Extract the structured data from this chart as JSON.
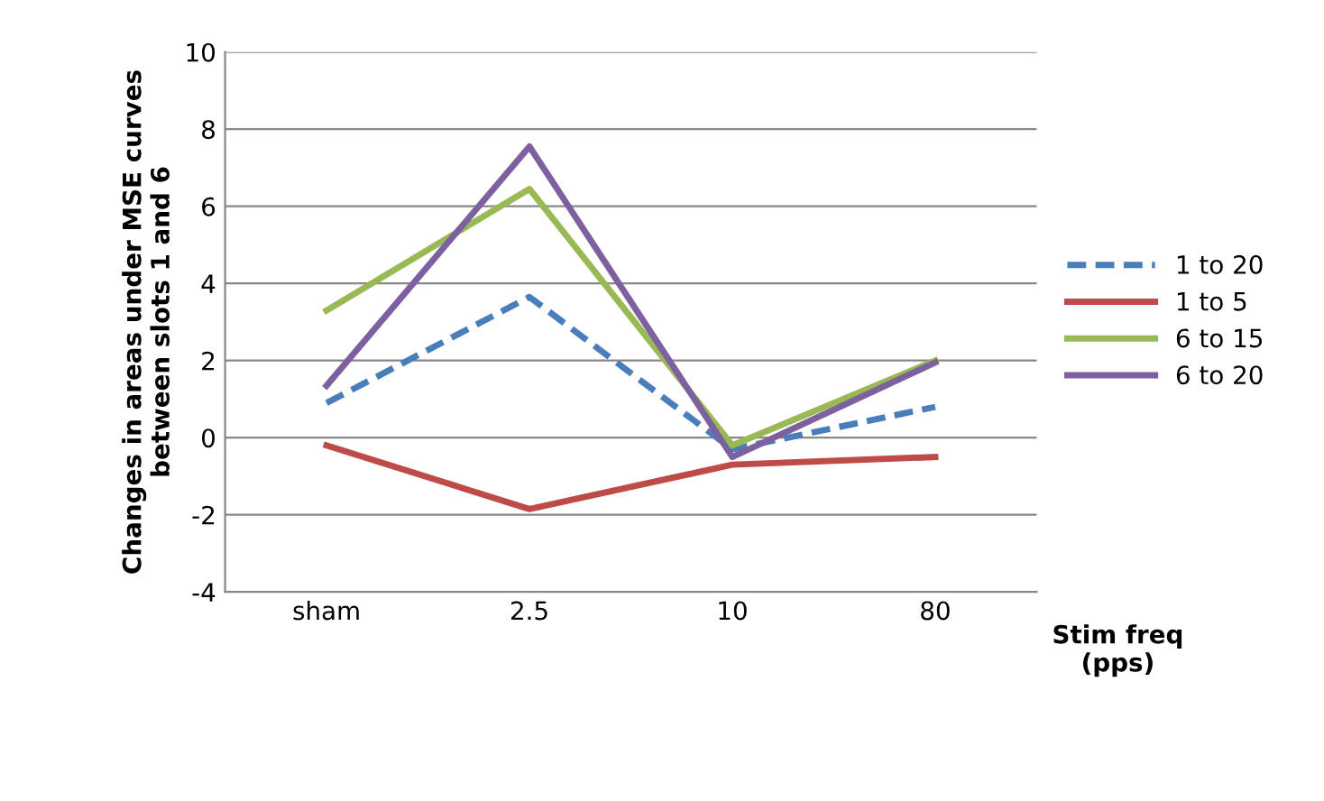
{
  "chart_data": {
    "type": "line",
    "xlabel": "Stim freq\n(pps)",
    "ylabel": "Changes in areas under MSE curves\nbetween slots 1 and 6",
    "categories": [
      "sham",
      "2.5",
      "10",
      "80"
    ],
    "series": [
      {
        "name": "1 to 20",
        "color": "#4a7ebb",
        "line_style": "dashed",
        "values": [
          0.9,
          3.65,
          -0.3,
          0.8
        ]
      },
      {
        "name": "1 to 5",
        "color": "#be4b48",
        "values": [
          -0.2,
          -1.85,
          -0.7,
          -0.5
        ]
      },
      {
        "name": "6 to 15",
        "color": "#98b954",
        "values": [
          3.3,
          6.45,
          -0.2,
          2.0
        ]
      },
      {
        "name": "6 to 20",
        "color": "#7d60a0",
        "values": [
          1.35,
          7.55,
          -0.5,
          1.95
        ]
      }
    ],
    "ylim": [
      -4,
      10
    ],
    "yticks": [
      -4,
      -2,
      0,
      2,
      4,
      6,
      8,
      10
    ],
    "grid": "y",
    "legend": "right",
    "marker": "none",
    "line_style": "solid"
  }
}
